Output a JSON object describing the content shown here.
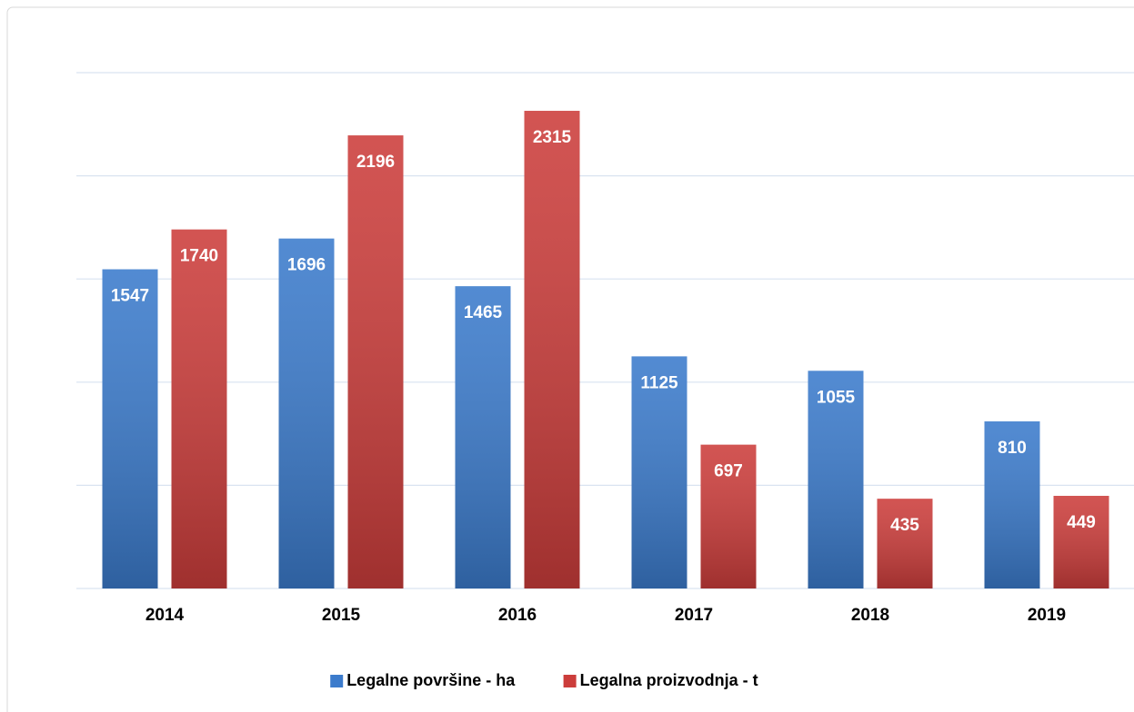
{
  "chart_data": {
    "type": "bar",
    "categories": [
      "2014",
      "2015",
      "2016",
      "2017",
      "2018",
      "2019"
    ],
    "series": [
      {
        "name": "Legalne površine - ha",
        "color": "#3b7bcc",
        "values": [
          1547,
          1696,
          1465,
          1125,
          1055,
          810
        ]
      },
      {
        "name": "Legalna proizvodnja - t",
        "color": "#cc3d3b",
        "values": [
          1740,
          2196,
          2315,
          697,
          435,
          449
        ]
      }
    ],
    "ylim": [
      0,
      2500
    ],
    "yticks": [
      0,
      500,
      1000,
      1500,
      2000,
      2500
    ],
    "grid": true,
    "legend": "bottom"
  }
}
